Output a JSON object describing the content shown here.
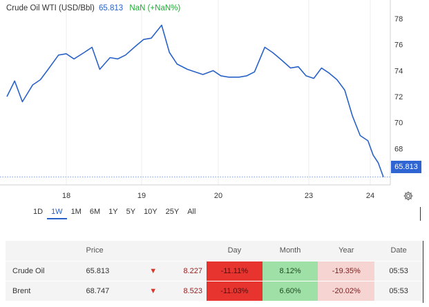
{
  "header": {
    "symbol": "Crude Oil WTI (USD/Bbl)",
    "last_price": "65.813",
    "change": "NaN (+NaN%)"
  },
  "price_tag": "65.813",
  "range_buttons": [
    "1D",
    "1W",
    "1M",
    "6M",
    "1Y",
    "5Y",
    "10Y",
    "25Y",
    "All"
  ],
  "active_range": "1W",
  "icons": {
    "settings": "gear-icon",
    "down": "triangle-down-icon"
  },
  "colors": {
    "line": "#2862c7",
    "price_tag": "#2f64d3",
    "positive": "#1faa34",
    "negative_strong": "#e8342f",
    "positive_soft": "#9fe0a6",
    "negative_soft": "#f6d4d2"
  },
  "table": {
    "headers": {
      "price": "Price",
      "day": "Day",
      "month": "Month",
      "year": "Year",
      "date": "Date"
    },
    "rows": [
      {
        "name": "Crude Oil",
        "price": "65.813",
        "change": "8.227",
        "day": "-11.11%",
        "month": "8.12%",
        "year": "-19.35%",
        "date": "05:53"
      },
      {
        "name": "Brent",
        "price": "68.747",
        "change": "8.523",
        "day": "-11.03%",
        "month": "6.60%",
        "year": "-20.02%",
        "date": "05:53"
      }
    ]
  },
  "chart_data": {
    "type": "line",
    "title": "Crude Oil WTI (USD/Bbl)",
    "x_ticks": [
      "18",
      "19",
      "20",
      "23",
      "24"
    ],
    "y_ticks": [
      68,
      70,
      72,
      74,
      76,
      78
    ],
    "ylim": [
      65.2,
      78.8
    ],
    "last_value": 65.813,
    "grid": "vertical",
    "series": [
      {
        "x": [
          0,
          0.3,
          0.6,
          1.0,
          1.3,
          1.6,
          2.0,
          2.3,
          2.6,
          3.0,
          3.3,
          3.6,
          4.0,
          4.3,
          4.6,
          5.0,
          5.3,
          5.6,
          6.0,
          6.3,
          6.6,
          7.0,
          7.3,
          7.6,
          8.0,
          8.3,
          8.6,
          9.0,
          9.3,
          9.6,
          10.0,
          10.3,
          10.6,
          11.0,
          11.3,
          11.6,
          11.9,
          12.2,
          12.5,
          12.8,
          13.1,
          13.4,
          13.7,
          14.0,
          14.2,
          14.4,
          14.6
        ],
        "y": [
          72.0,
          73.2,
          71.6,
          72.9,
          73.3,
          74.1,
          75.2,
          75.3,
          74.9,
          75.4,
          75.8,
          74.1,
          75.0,
          74.9,
          75.2,
          75.9,
          76.4,
          76.5,
          77.5,
          75.4,
          74.5,
          74.1,
          73.9,
          73.7,
          74.0,
          73.6,
          73.5,
          73.5,
          73.6,
          73.9,
          75.8,
          75.4,
          74.9,
          74.2,
          74.3,
          73.6,
          73.4,
          74.2,
          73.8,
          73.3,
          72.5,
          70.5,
          69.0,
          68.6,
          67.5,
          66.9,
          65.8
        ]
      }
    ]
  }
}
